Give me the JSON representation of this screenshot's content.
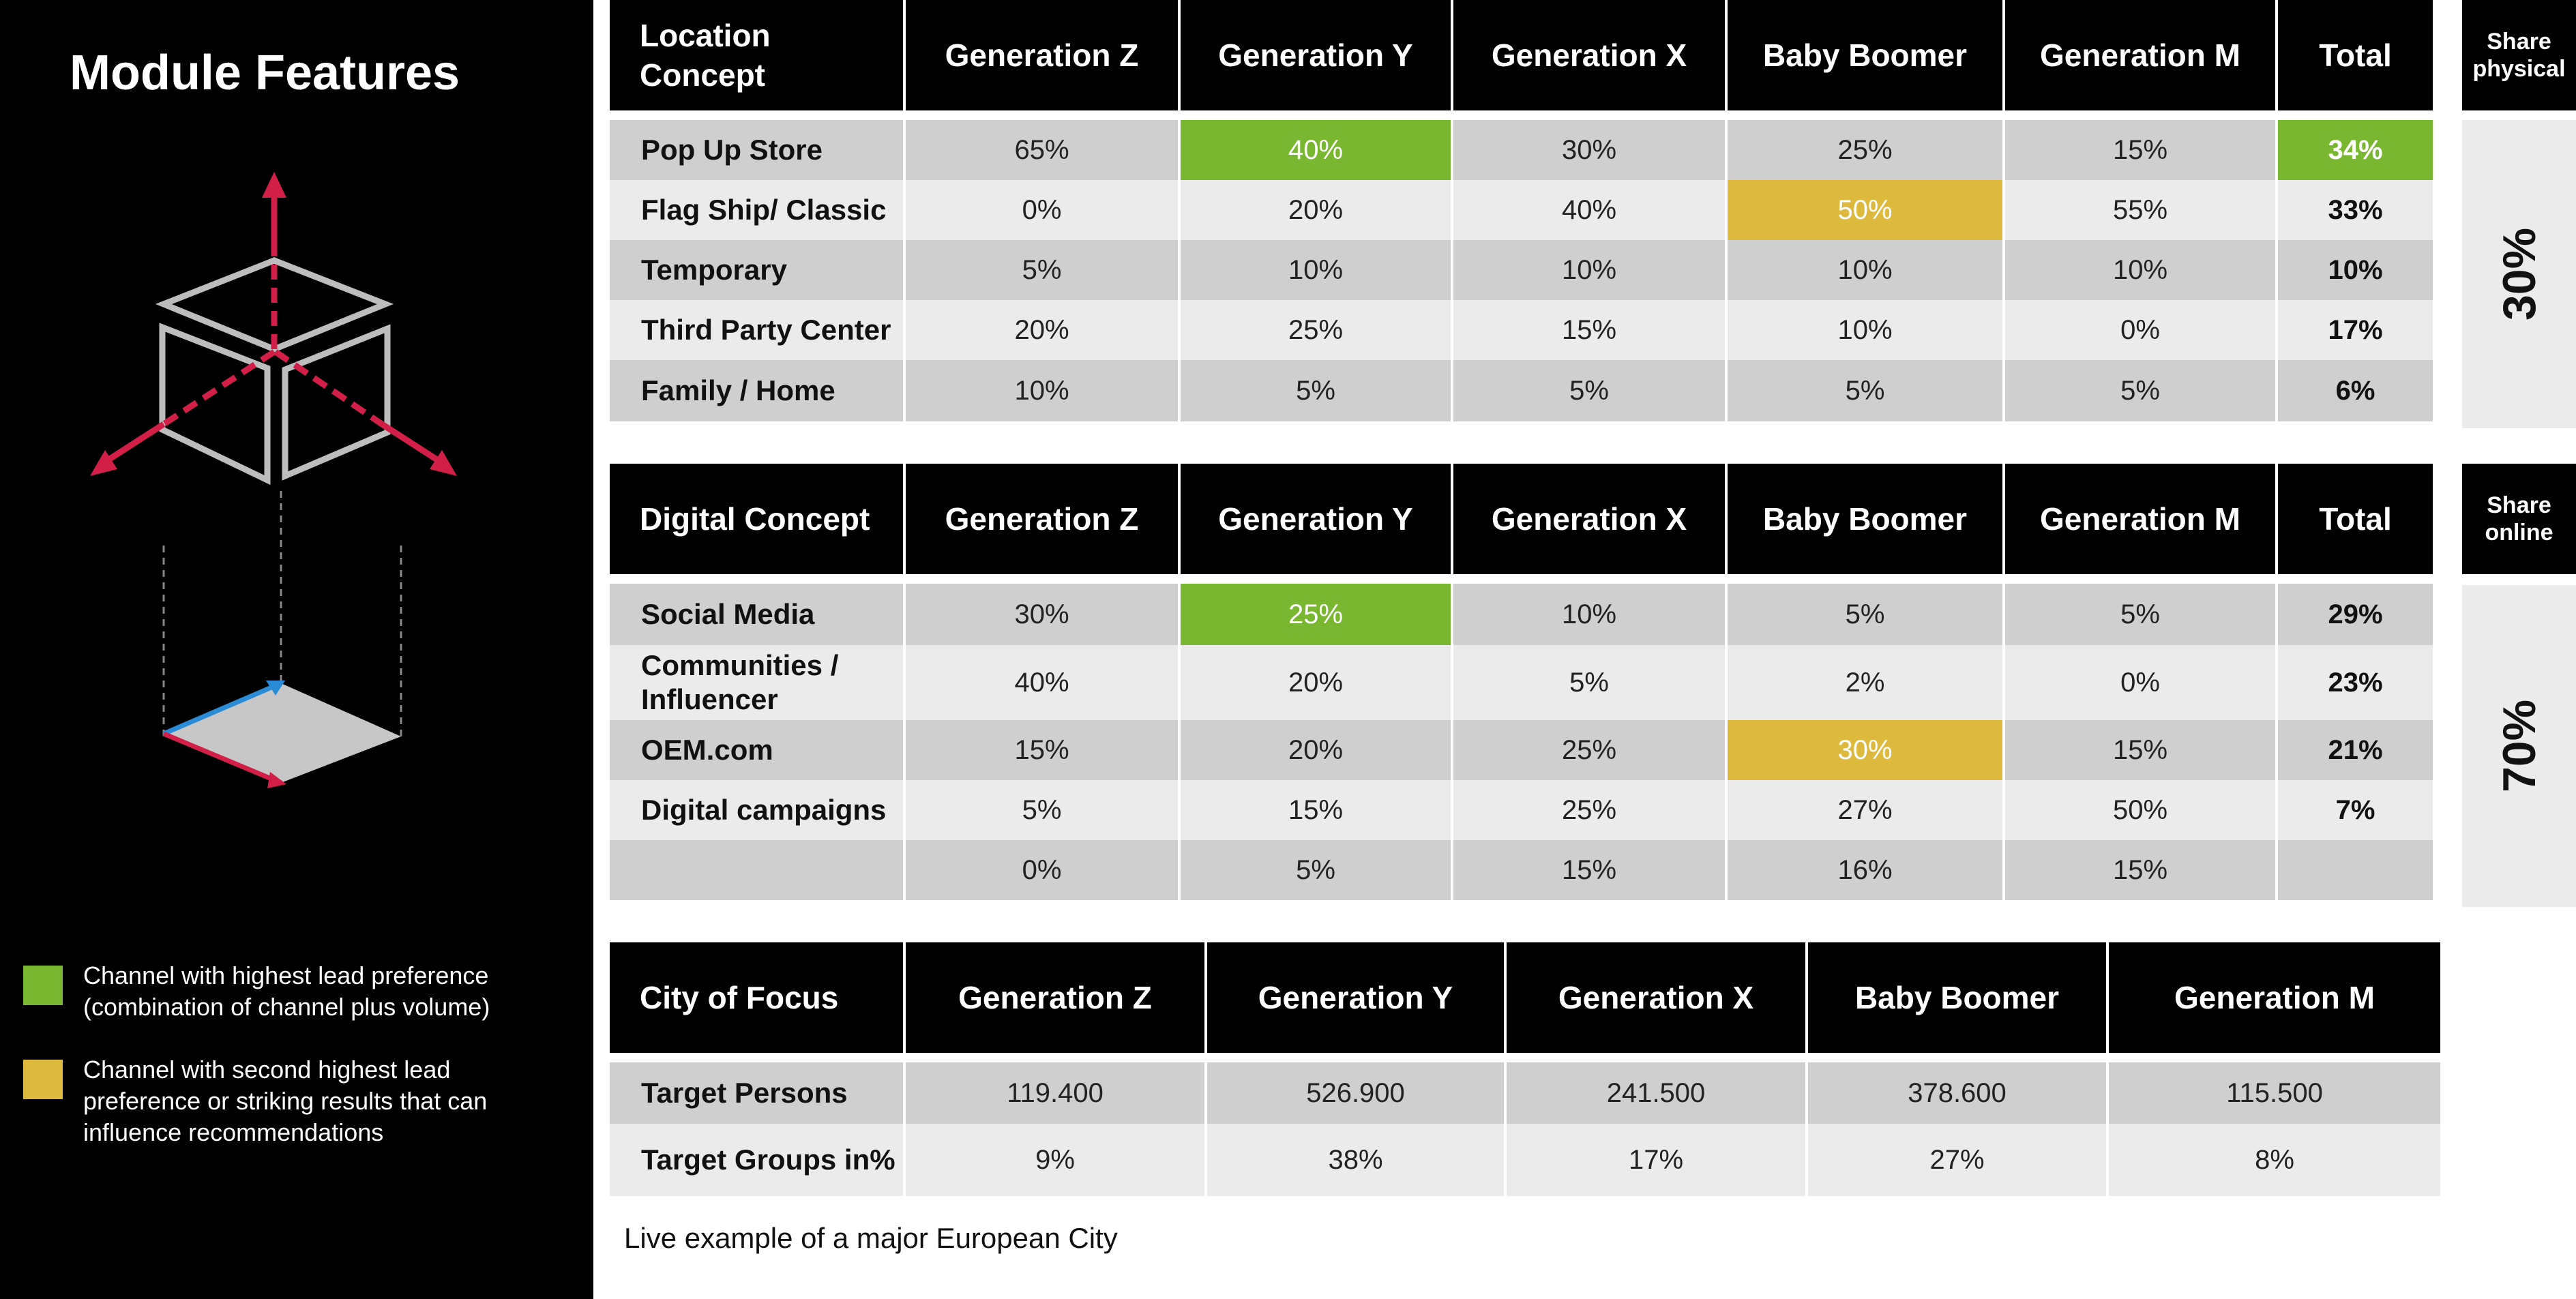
{
  "sidebar": {
    "title": "Module Features",
    "legend": [
      {
        "color": "#7ab731",
        "text": "Channel with highest lead preference (combination of channel plus volume)"
      },
      {
        "color": "#ddb93d",
        "text": "Channel with second highest lead preference or striking results that can influence recommendations"
      }
    ],
    "icon": "cube-axes-diagram-icon"
  },
  "colors": {
    "accent_green": "#7ab731",
    "accent_yellow": "#ddb93d",
    "arrow_red": "#d21f47",
    "arrow_blue": "#2a8bd6"
  },
  "location": {
    "header": [
      "Location Concept",
      "Generation Z",
      "Generation Y",
      "Generation X",
      "Baby Boomer",
      "Generation M",
      "Total"
    ],
    "rows": [
      [
        "Pop Up Store",
        "65%",
        "40%",
        "30%",
        "25%",
        "15%",
        "34%"
      ],
      [
        "Flag Ship/ Classic",
        "0%",
        "20%",
        "40%",
        "50%",
        "55%",
        "33%"
      ],
      [
        "Temporary",
        "5%",
        "10%",
        "10%",
        "10%",
        "10%",
        "10%"
      ],
      [
        "Third Party Center",
        "20%",
        "25%",
        "15%",
        "10%",
        "0%",
        "17%"
      ],
      [
        "Family / Home",
        "10%",
        "5%",
        "5%",
        "5%",
        "5%",
        "6%"
      ]
    ],
    "share_label": "Share physical",
    "share_value": "30%"
  },
  "digital": {
    "header": [
      "Digital Concept",
      "Generation Z",
      "Generation Y",
      "Generation X",
      "Baby Boomer",
      "Generation M",
      "Total"
    ],
    "rows": [
      [
        "Social Media",
        "30%",
        "25%",
        "10%",
        "5%",
        "5%",
        "29%"
      ],
      [
        "Communities / Influencer",
        "40%",
        "20%",
        "5%",
        "2%",
        "0%",
        "23%"
      ],
      [
        "OEM.com",
        "15%",
        "20%",
        "25%",
        "30%",
        "15%",
        "21%"
      ],
      [
        "Digital campaigns",
        "5%",
        "15%",
        "25%",
        "27%",
        "50%",
        "7%"
      ],
      [
        "",
        "0%",
        "5%",
        "15%",
        "16%",
        "15%",
        ""
      ]
    ],
    "share_label": "Share online",
    "share_value": "70%"
  },
  "city": {
    "header": [
      "City of Focus",
      "Generation Z",
      "Generation Y",
      "Generation X",
      "Baby Boomer",
      "Generation M"
    ],
    "rows": [
      [
        "Target Persons",
        "119.400",
        "526.900",
        "241.500",
        "378.600",
        "115.500"
      ],
      [
        "Target Groups in%",
        "9%",
        "38%",
        "17%",
        "27%",
        "8%"
      ]
    ]
  },
  "footnote": "Live example of a major European City"
}
